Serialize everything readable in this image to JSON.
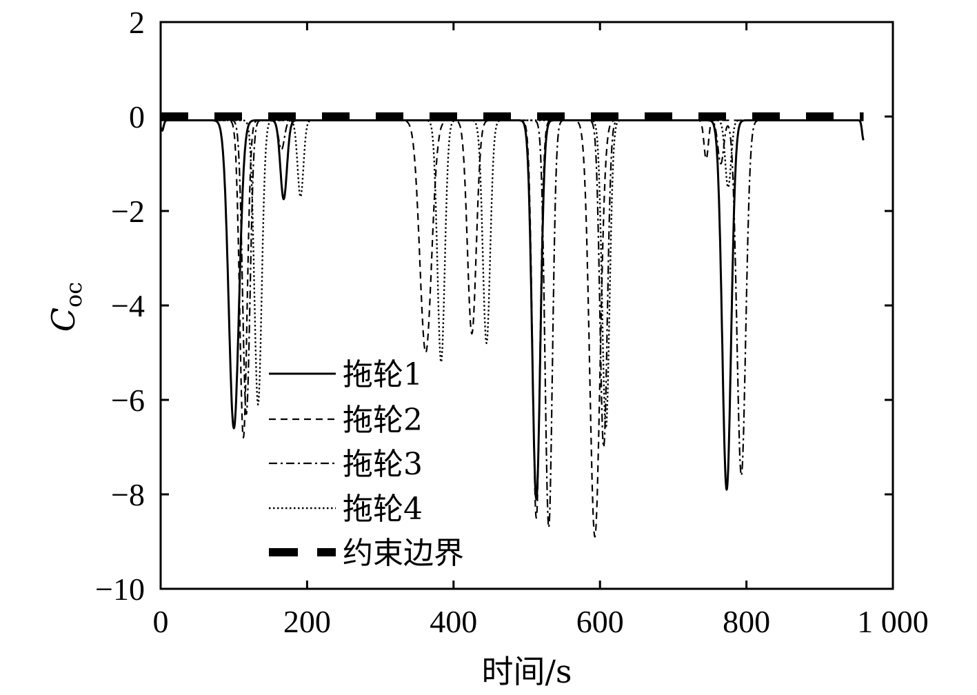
{
  "chart_data": {
    "type": "line",
    "xlabel": "时间/s",
    "ylabel_main": "C",
    "ylabel_sub": "oc",
    "xlim": [
      0,
      1000
    ],
    "ylim": [
      -10,
      2
    ],
    "xticks": [
      0,
      200,
      400,
      600,
      800,
      1000
    ],
    "xtick_labels": [
      "0",
      "200",
      "400",
      "600",
      "800",
      "1 000"
    ],
    "yticks": [
      2,
      0,
      -2,
      -4,
      -6,
      -8,
      -10
    ],
    "ytick_labels": [
      "2",
      "0",
      "−2",
      "−4",
      "−6",
      "−8",
      "−10"
    ],
    "grid": false,
    "legend_position": "lower-left",
    "baseline": -0.08,
    "x_end": 960,
    "series": [
      {
        "name": "拖轮1",
        "style": "solid",
        "dips": [
          {
            "center": 2,
            "depth": -0.3,
            "width": 2
          },
          {
            "center": 100,
            "depth": -6.6,
            "width": 7
          },
          {
            "center": 168,
            "depth": -1.75,
            "width": 4.5
          },
          {
            "center": 513,
            "depth": -8.1,
            "width": 5.5
          },
          {
            "center": 773,
            "depth": -7.9,
            "width": 6
          },
          {
            "center": 960,
            "depth": -0.5,
            "width": 2
          }
        ]
      },
      {
        "name": "拖轮2",
        "style": "dashed",
        "dips": [
          {
            "center": 113,
            "depth": -6.8,
            "width": 5
          },
          {
            "center": 362,
            "depth": -5.0,
            "width": 8
          },
          {
            "center": 425,
            "depth": -4.6,
            "width": 6
          },
          {
            "center": 513,
            "depth": -8.5,
            "width": 5
          },
          {
            "center": 593,
            "depth": -8.9,
            "width": 7
          },
          {
            "center": 745,
            "depth": -0.9,
            "width": 3
          }
        ]
      },
      {
        "name": "拖轮3",
        "style": "dashdot",
        "dips": [
          {
            "center": 117,
            "depth": -6.3,
            "width": 5
          },
          {
            "center": 165,
            "depth": -0.7,
            "width": 4
          },
          {
            "center": 530,
            "depth": -8.7,
            "width": 5
          },
          {
            "center": 605,
            "depth": -7.0,
            "width": 5
          },
          {
            "center": 765,
            "depth": -1.0,
            "width": 4
          },
          {
            "center": 793,
            "depth": -7.6,
            "width": 6
          }
        ]
      },
      {
        "name": "拖轮4",
        "style": "dotted",
        "dips": [
          {
            "center": 133,
            "depth": -6.1,
            "width": 5
          },
          {
            "center": 191,
            "depth": -1.7,
            "width": 4
          },
          {
            "center": 383,
            "depth": -5.2,
            "width": 5
          },
          {
            "center": 445,
            "depth": -4.8,
            "width": 5
          },
          {
            "center": 608,
            "depth": -6.6,
            "width": 5
          },
          {
            "center": 775,
            "depth": -1.5,
            "width": 4
          }
        ]
      },
      {
        "name": "约束边界",
        "style": "thick-dash",
        "constant": 0
      }
    ]
  }
}
